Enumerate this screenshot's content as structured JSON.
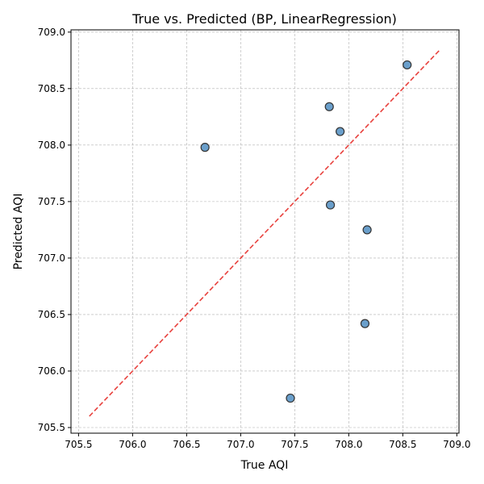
{
  "chart_data": {
    "type": "scatter",
    "title": "True vs. Predicted (BP, LinearRegression)",
    "xlabel": "True AQI",
    "ylabel": "Predicted AQI",
    "xlim": [
      705.43,
      709.02
    ],
    "ylim": [
      705.45,
      709.02
    ],
    "x_ticks": [
      "705.5",
      "706.0",
      "706.5",
      "707.0",
      "707.5",
      "708.0",
      "708.5",
      "709.0"
    ],
    "y_ticks": [
      "705.5",
      "706.0",
      "706.5",
      "707.0",
      "707.5",
      "708.0",
      "708.5",
      "709.0"
    ],
    "grid": true,
    "points": [
      {
        "x": 708.54,
        "y": 708.71
      },
      {
        "x": 707.82,
        "y": 708.34
      },
      {
        "x": 707.92,
        "y": 708.12
      },
      {
        "x": 706.67,
        "y": 707.98
      },
      {
        "x": 707.83,
        "y": 707.47
      },
      {
        "x": 708.17,
        "y": 707.25
      },
      {
        "x": 708.15,
        "y": 706.42
      },
      {
        "x": 707.46,
        "y": 705.76
      }
    ],
    "reference_line": {
      "x": [
        705.6,
        708.85
      ],
      "y": [
        705.6,
        708.85
      ],
      "style": "dashed",
      "color": "#e8413d"
    },
    "colors": {
      "point_fill": "#6a9fcb",
      "point_edge": "#333333",
      "grid": "#b0b0b0"
    }
  }
}
